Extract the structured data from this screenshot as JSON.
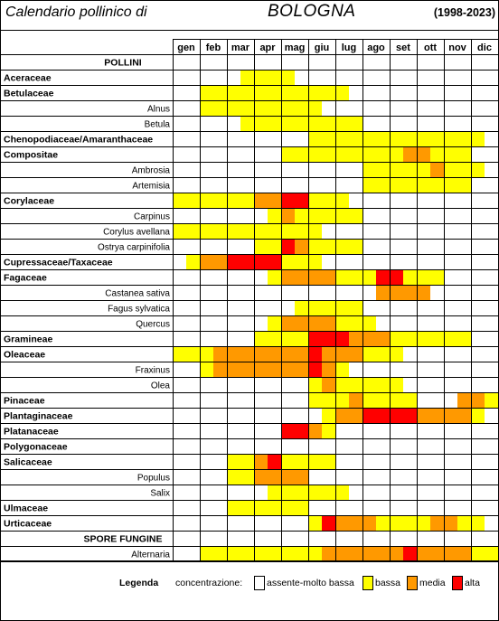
{
  "header": {
    "title": "Calendario pollinico di",
    "city": "BOLOGNA",
    "years": "(1998-2023)"
  },
  "months": [
    "gen",
    "feb",
    "mar",
    "apr",
    "mag",
    "giu",
    "lug",
    "ago",
    "set",
    "ott",
    "nov",
    "dic"
  ],
  "colors": {
    "assente": "#ffffff",
    "bassa": "#ffff00",
    "media": "#ff9900",
    "alta": "#ff0000"
  },
  "legend": {
    "title": "Legenda",
    "label": "concentrazione:",
    "items": [
      {
        "key": "assente",
        "label": "assente-molto bassa"
      },
      {
        "key": "bassa",
        "label": "bassa"
      },
      {
        "key": "media",
        "label": "media"
      },
      {
        "key": "alta",
        "label": "alta"
      }
    ]
  },
  "chart_data": {
    "type": "heatmap",
    "title": "Calendario pollinico di BOLOGNA (1998-2023)",
    "columns": [
      "gen",
      "feb",
      "mar",
      "apr",
      "mag",
      "giu",
      "lug",
      "ago",
      "set",
      "ott",
      "nov",
      "dic"
    ],
    "value_scale": {
      "0": "assente-molto bassa",
      "1": "bassa",
      "2": "media",
      "3": "alta"
    },
    "rows": [
      {
        "label": "POLLINI",
        "kind": "section",
        "cells": ""
      },
      {
        "label": "Aceraceae",
        "kind": "family",
        "cells": "     2222              "
      },
      {
        "label": "Betulaceae",
        "kind": "family",
        "cells": "  22222222222          "
      },
      {
        "label": "Alnus",
        "kind": "genus",
        "cells": "  222222222            "
      },
      {
        "label": "Betula",
        "kind": "genus",
        "cells": "     222222222         "
      },
      {
        "label": "Chenopodiaceae/Amaranthaceae",
        "kind": "family",
        "cells": "          2222222222222"
      },
      {
        "label": "Compositae",
        "kind": "family",
        "cells": "        22222222233222 "
      },
      {
        "label": "Ambrosia",
        "kind": "genus",
        "cells": "              222223222"
      },
      {
        "label": "Artemisia",
        "kind": "genus",
        "cells": "              22222222 "
      },
      {
        "label": "Corylaceae",
        "kind": "family",
        "cells": "2222223344222          "
      },
      {
        "label": "Carpinus",
        "kind": "genus",
        "cells": "       2322222         "
      },
      {
        "label": "Corylus avellana",
        "kind": "genus",
        "cells": "22222222222            "
      },
      {
        "label": "Ostrya carpinifolia",
        "kind": "genus",
        "cells": "      22432222         "
      },
      {
        "label": "Cupressaceae/Taxaceae",
        "kind": "family",
        "cells": " 2334444222            "
      },
      {
        "label": "Fagaceae",
        "kind": "family",
        "cells": "       2333322244222   "
      },
      {
        "label": "Castanea sativa",
        "kind": "genus",
        "cells": "               3333    "
      },
      {
        "label": "Fagus sylvatica",
        "kind": "genus",
        "cells": "         22222         "
      },
      {
        "label": "Quercus",
        "kind": "genus",
        "cells": "       23333222        "
      },
      {
        "label": "Gramineae",
        "kind": "family",
        "cells": "      2222444333222222 "
      },
      {
        "label": "Oleaceae",
        "kind": "family",
        "cells": "22233333334333222      "
      },
      {
        "label": "Fraxinus",
        "kind": "genus",
        "cells": "  23333333432          "
      },
      {
        "label": "Olea",
        "kind": "genus",
        "cells": "          2322222      "
      },
      {
        "label": "Pinaceae",
        "kind": "family",
        "cells": "          22232222   33222"
      },
      {
        "label": "Plantaginaceae",
        "kind": "family",
        "cells": "           233444433332"
      },
      {
        "label": "Platanaceae",
        "kind": "family",
        "cells": "        4432            "
      },
      {
        "label": "Polygonaceae",
        "kind": "family",
        "cells": ""
      },
      {
        "label": "Salicaceae",
        "kind": "family",
        "cells": "    22342222           "
      },
      {
        "label": "Populus",
        "kind": "genus",
        "cells": "    223333             "
      },
      {
        "label": "Salix",
        "kind": "genus",
        "cells": "       222222          "
      },
      {
        "label": "Ulmaceae",
        "kind": "family",
        "cells": "    222222             "
      },
      {
        "label": "Urticaceae",
        "kind": "family",
        "cells": "          2433322223322 "
      },
      {
        "label": "SPORE FUNGINE",
        "kind": "section",
        "cells": ""
      },
      {
        "label": "Alternaria",
        "kind": "genus",
        "cells": "  22222222233333343333222"
      }
    ]
  }
}
